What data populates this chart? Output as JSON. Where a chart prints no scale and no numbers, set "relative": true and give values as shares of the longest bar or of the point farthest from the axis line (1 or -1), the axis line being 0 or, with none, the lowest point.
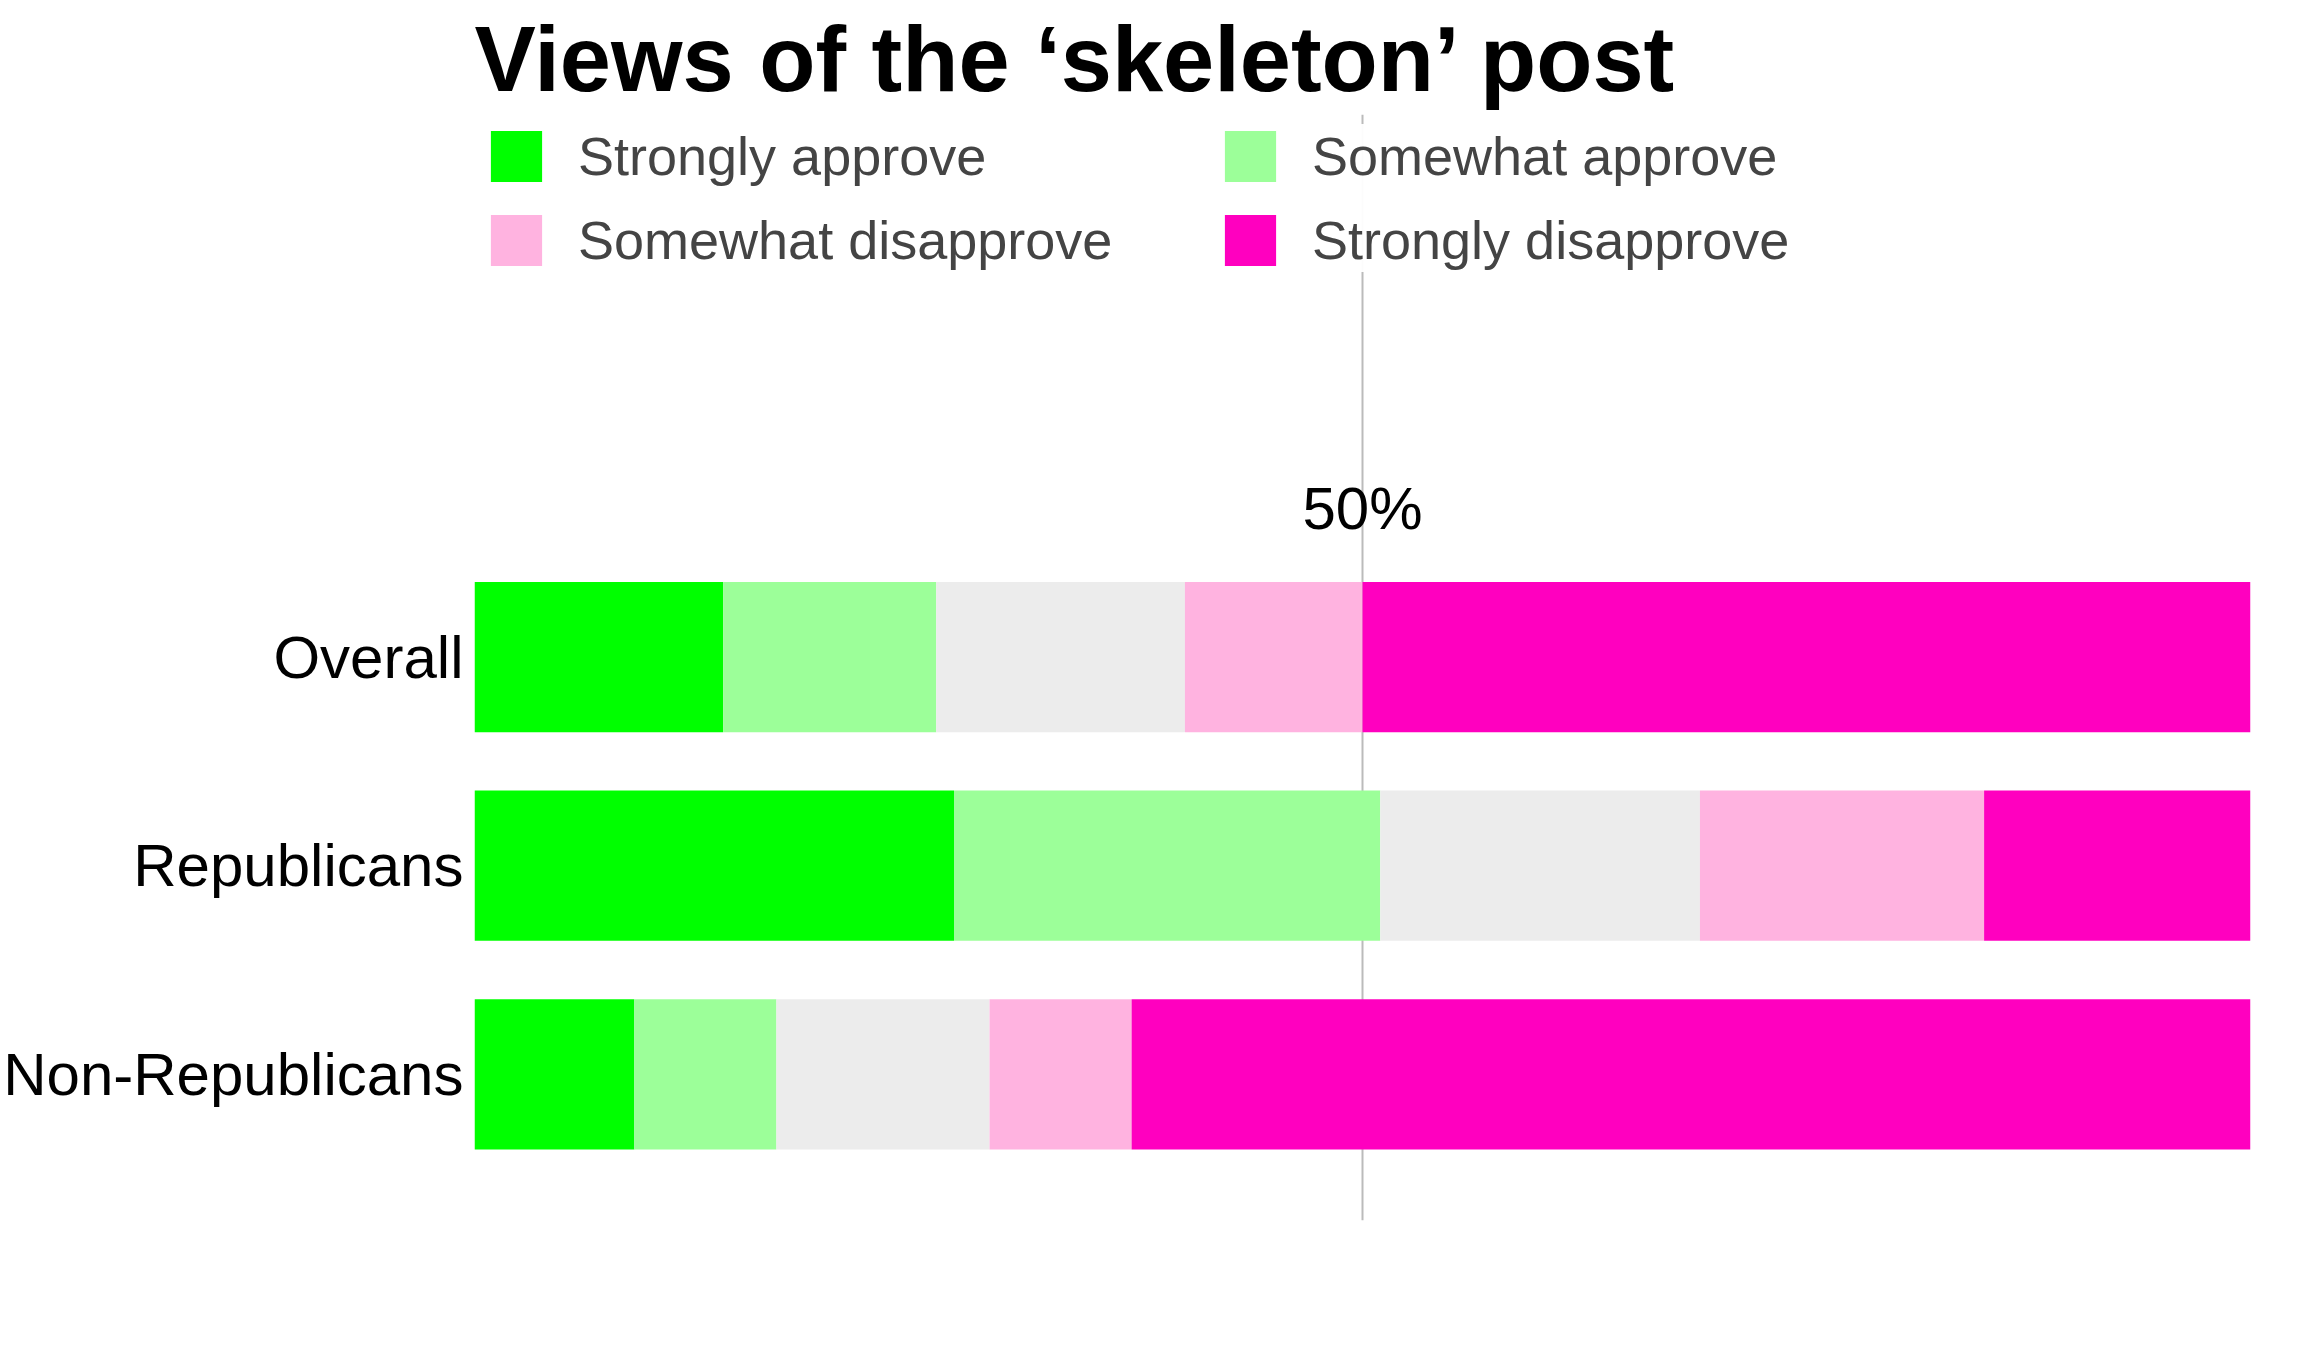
{
  "chart_data": {
    "type": "bar",
    "orientation": "horizontal",
    "stacked": true,
    "relative": true,
    "title": "Views of the ‘skeleton’ post",
    "categories": [
      "Overall",
      "Republicans",
      "Non-Republicans"
    ],
    "series": [
      {
        "name": "Strongly approve",
        "color": "#00ff00",
        "values": [
          0.14,
          0.27,
          0.09
        ]
      },
      {
        "name": "Somewhat approve",
        "color": "#9cff99",
        "values": [
          0.12,
          0.24,
          0.08
        ]
      },
      {
        "color": "#ececec",
        "values": [
          0.14,
          0.18,
          0.12
        ]
      },
      {
        "name": "Somewhat disapprove",
        "color": "#ffb3e0",
        "values": [
          0.1,
          0.16,
          0.08
        ]
      },
      {
        "name": "Strongly disapprove",
        "color": "#ff00bf",
        "values": [
          0.5,
          0.15,
          0.63
        ]
      }
    ],
    "ref_lines": [
      {
        "axis": "x",
        "value": 0.5,
        "label": "50%",
        "color": "#bbbbbb"
      }
    ],
    "legend": "top",
    "grid": false
  }
}
